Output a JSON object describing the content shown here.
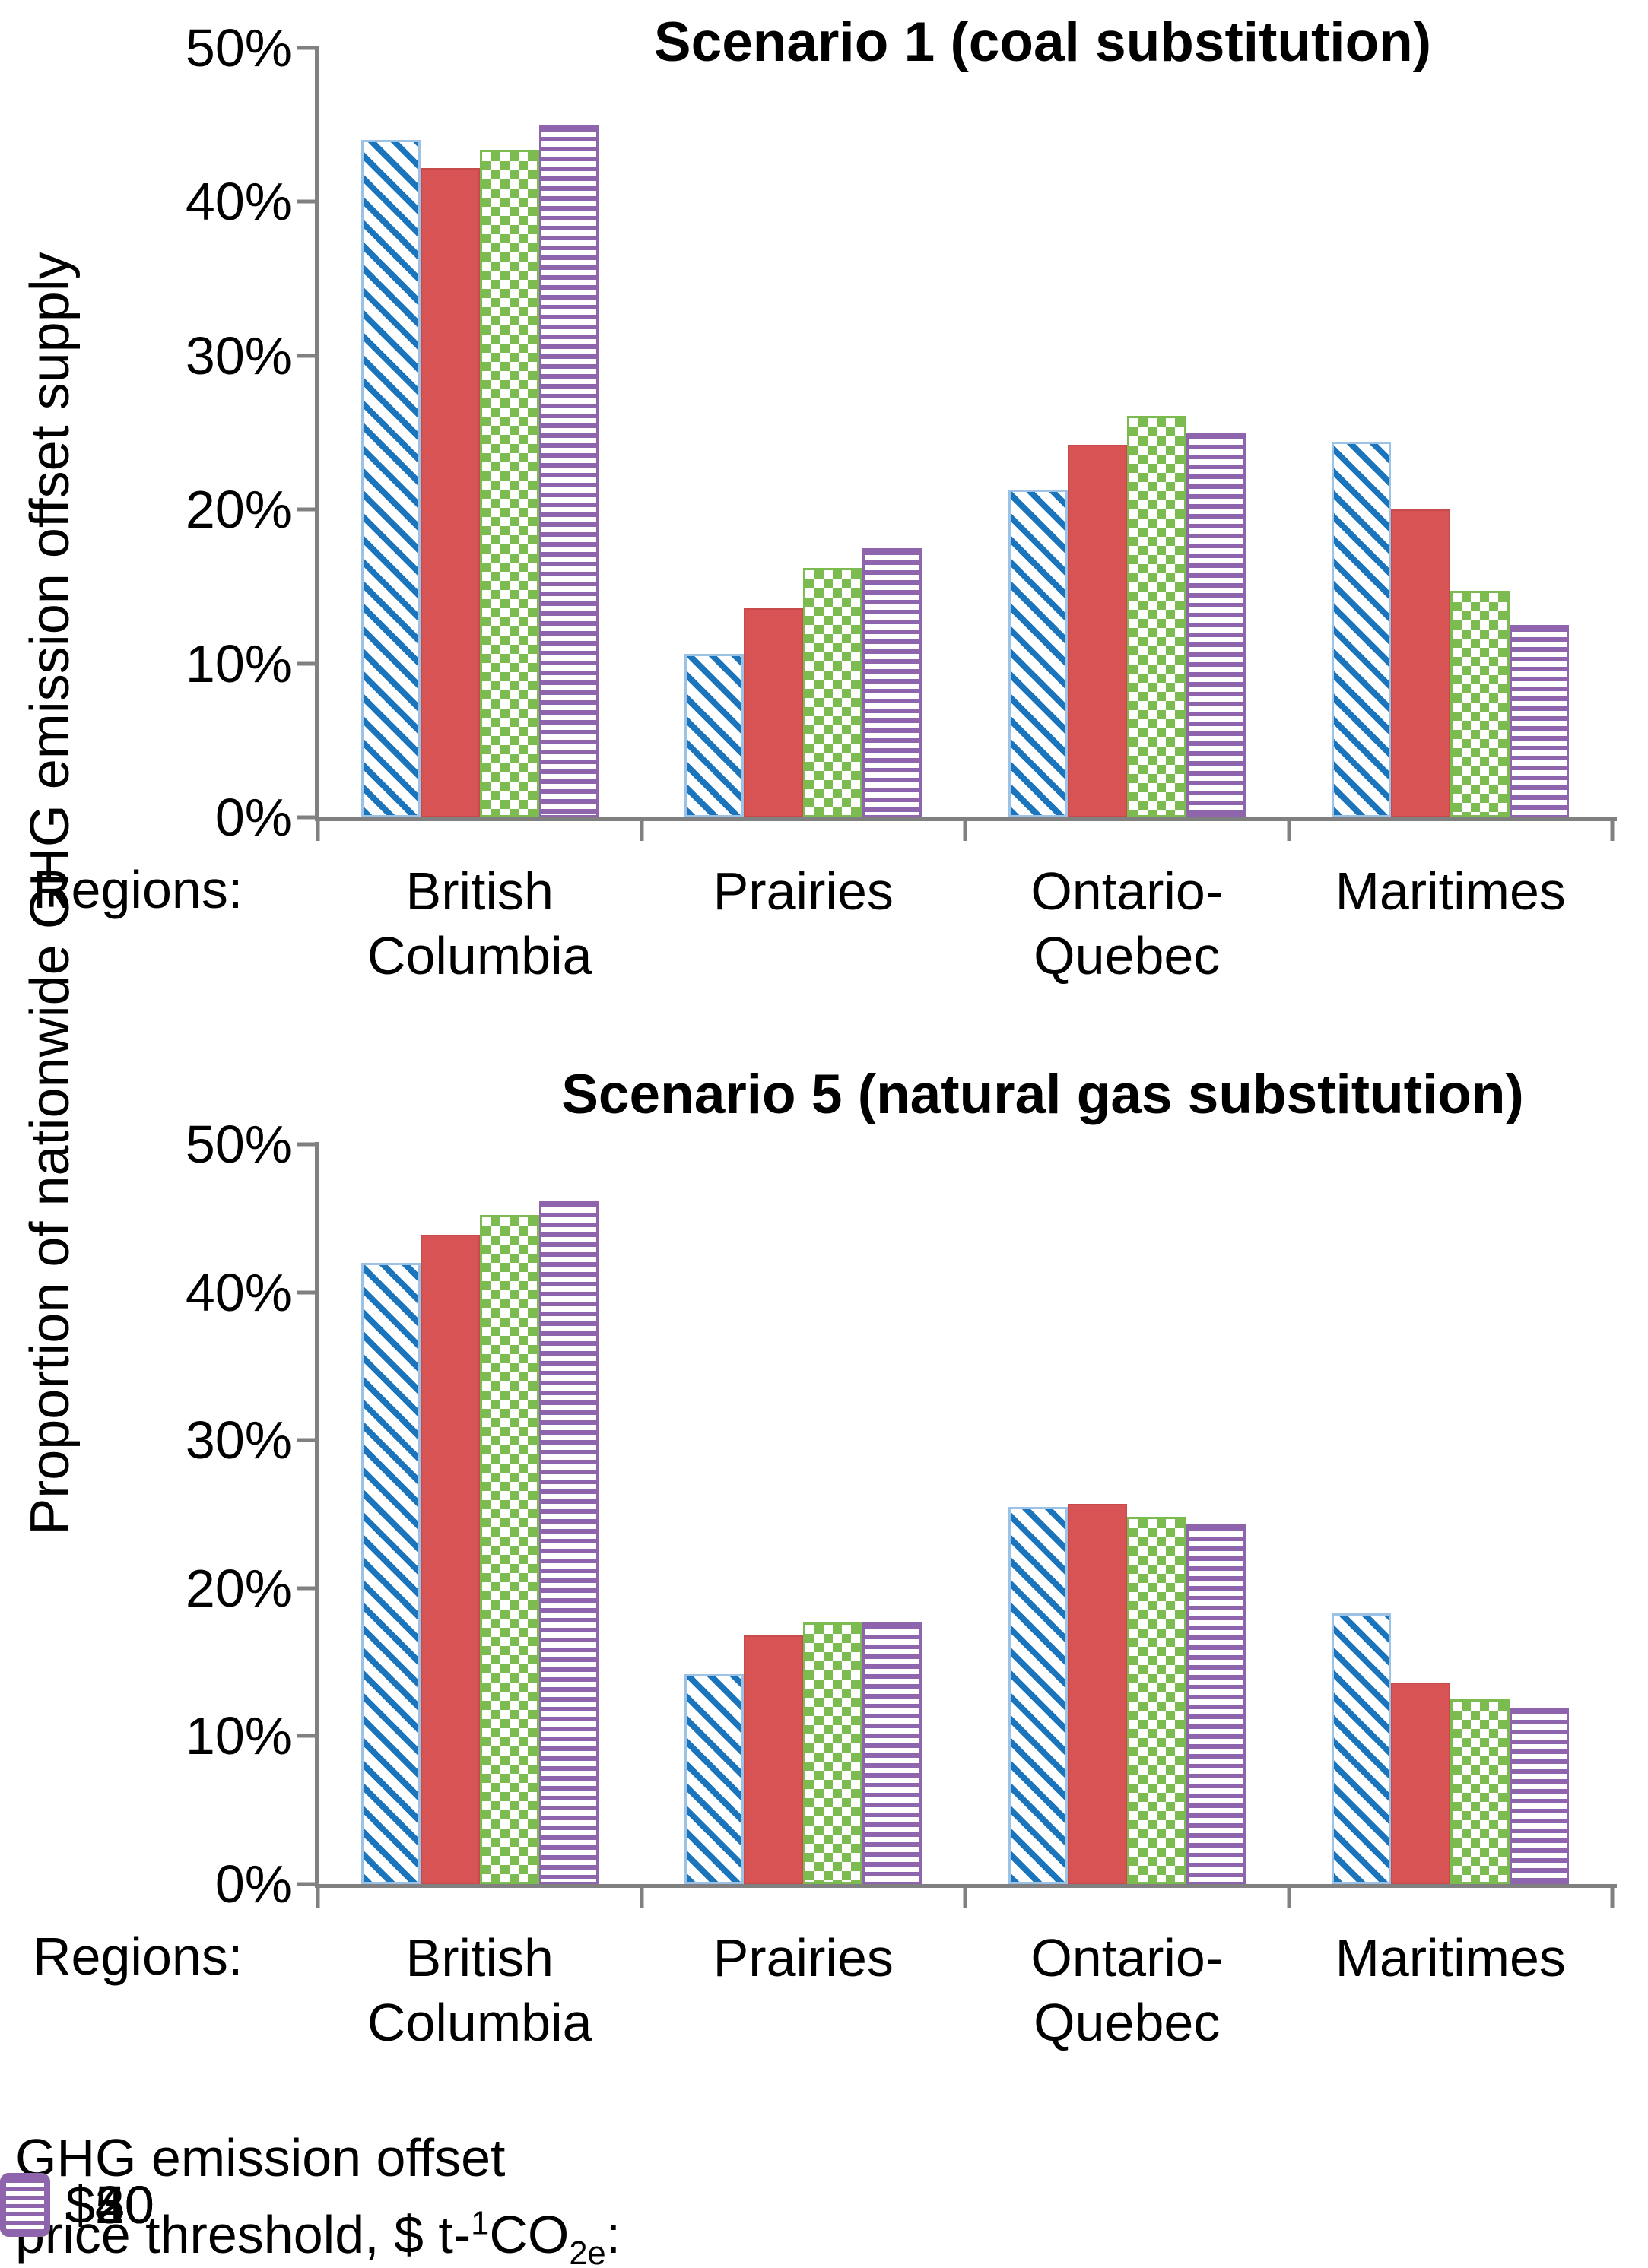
{
  "y_axis": {
    "label": "Proportion of nationwide GHG emission offset supply"
  },
  "x_axis": {
    "prefix": "Regions:"
  },
  "legend": {
    "label_line1": "GHG emission offset",
    "label_line2_prefix": "price threshold, $ t-",
    "label_sup": "1",
    "label_mid": "CO",
    "label_sub": "2e",
    "label_suffix": ":",
    "items": [
      {
        "label": "$20",
        "pattern": "blue-diagonal-stripes",
        "color": "#1B75BC"
      },
      {
        "label": "$30",
        "pattern": "red-solid",
        "color": "#D85454"
      },
      {
        "label": "$40",
        "pattern": "green-checkerboard",
        "color": "#7CBB4F"
      },
      {
        "label": "$50",
        "pattern": "purple-horizontal-stripes",
        "color": "#8E64AD"
      }
    ]
  },
  "colors": {
    "series_20": "#1B75BC",
    "series_30": "#D85454",
    "series_40": "#7CBB4F",
    "series_50": "#8E64AD",
    "axis": "#808080",
    "text": "#000000"
  },
  "chart_data": [
    {
      "type": "bar",
      "title": "Scenario 1 (coal substitution)",
      "categories": [
        [
          "British",
          "Columbia"
        ],
        [
          "Prairies"
        ],
        [
          "Ontario-",
          "Quebec"
        ],
        [
          "Maritimes"
        ]
      ],
      "series": [
        {
          "name": "$20",
          "values": [
            44.0,
            10.6,
            21.3,
            24.4
          ]
        },
        {
          "name": "$30",
          "values": [
            42.2,
            13.6,
            24.2,
            20.0
          ]
        },
        {
          "name": "$40",
          "values": [
            43.4,
            16.2,
            26.1,
            14.7
          ]
        },
        {
          "name": "$50",
          "values": [
            45.0,
            17.5,
            25.0,
            12.5
          ]
        }
      ],
      "ylabel": "Proportion of nationwide GHG emission offset supply",
      "ylim": [
        0,
        50
      ],
      "yticks": [
        "50%",
        "40%",
        "30%",
        "20%",
        "10%",
        "0%"
      ],
      "grid": false,
      "legend_position": "bottom"
    },
    {
      "type": "bar",
      "title": "Scenario 5 (natural gas substitution)",
      "categories": [
        [
          "British",
          "Columbia"
        ],
        [
          "Prairies"
        ],
        [
          "Ontario-",
          "Quebec"
        ],
        [
          "Maritimes"
        ]
      ],
      "series": [
        {
          "name": "$20",
          "values": [
            42.0,
            14.2,
            25.5,
            18.3
          ]
        },
        {
          "name": "$30",
          "values": [
            43.9,
            16.8,
            25.7,
            13.6
          ]
        },
        {
          "name": "$40",
          "values": [
            45.2,
            17.7,
            24.8,
            12.5
          ]
        },
        {
          "name": "$50",
          "values": [
            46.2,
            17.7,
            24.3,
            11.9
          ]
        }
      ],
      "ylabel": "Proportion of nationwide GHG emission offset supply",
      "ylim": [
        0,
        50
      ],
      "yticks": [
        "50%",
        "40%",
        "30%",
        "20%",
        "10%",
        "0%"
      ],
      "grid": false,
      "legend_position": "bottom"
    }
  ]
}
